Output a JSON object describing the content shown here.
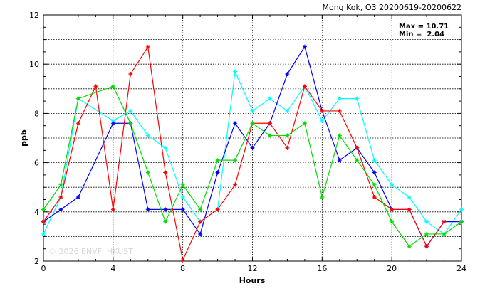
{
  "chart_data": {
    "type": "line",
    "title": "Mong Kok, O3 20200619-20200622",
    "xlabel": "Hours",
    "ylabel": "ppb",
    "xlim": [
      0,
      24
    ],
    "ylim": [
      2,
      12
    ],
    "xticks": [
      0,
      4,
      8,
      12,
      16,
      20,
      24
    ],
    "yticks": [
      2,
      4,
      6,
      8,
      10,
      12
    ],
    "grid": true,
    "stats": {
      "max_label": "Max = 10.71",
      "min_label": "Min =  2.04"
    },
    "watermark": "© 2026  ENVF, HKUST",
    "x": [
      0,
      1,
      2,
      3,
      4,
      5,
      6,
      7,
      8,
      9,
      10,
      11,
      12,
      13,
      14,
      15,
      16,
      17,
      18,
      19,
      20,
      21,
      22,
      23,
      24
    ],
    "series": [
      {
        "color": "#00ffff",
        "values": [
          3.1,
          4.6,
          8.6,
          null,
          7.7,
          8.1,
          7.1,
          6.6,
          4.6,
          3.6,
          4.1,
          9.7,
          8.1,
          8.6,
          8.1,
          9.1,
          7.7,
          8.6,
          8.6,
          6.1,
          5.1,
          4.6,
          3.6,
          3.1,
          4.1
        ]
      },
      {
        "color": "#0000ff",
        "values": [
          3.6,
          4.1,
          4.6,
          null,
          7.6,
          7.6,
          4.1,
          4.1,
          4.1,
          3.1,
          5.6,
          7.6,
          6.6,
          7.6,
          9.6,
          10.71,
          8.1,
          6.1,
          6.6,
          5.6,
          4.1,
          4.1,
          2.6,
          3.6,
          3.6
        ]
      },
      {
        "color": "#ff0000",
        "values": [
          3.6,
          4.6,
          7.6,
          9.1,
          4.1,
          9.6,
          10.7,
          5.6,
          2.04,
          3.6,
          4.1,
          5.1,
          7.6,
          7.6,
          6.6,
          9.1,
          8.1,
          8.1,
          6.6,
          4.6,
          4.1,
          4.1,
          2.6,
          3.6,
          null
        ]
      },
      {
        "color": "#00dd00",
        "values": [
          4.1,
          5.1,
          8.6,
          null,
          9.1,
          7.6,
          5.6,
          3.6,
          5.1,
          4.1,
          6.1,
          6.1,
          7.6,
          7.1,
          7.1,
          7.6,
          4.6,
          7.1,
          6.1,
          5.1,
          3.6,
          2.6,
          3.1,
          3.1,
          3.6
        ]
      }
    ]
  }
}
